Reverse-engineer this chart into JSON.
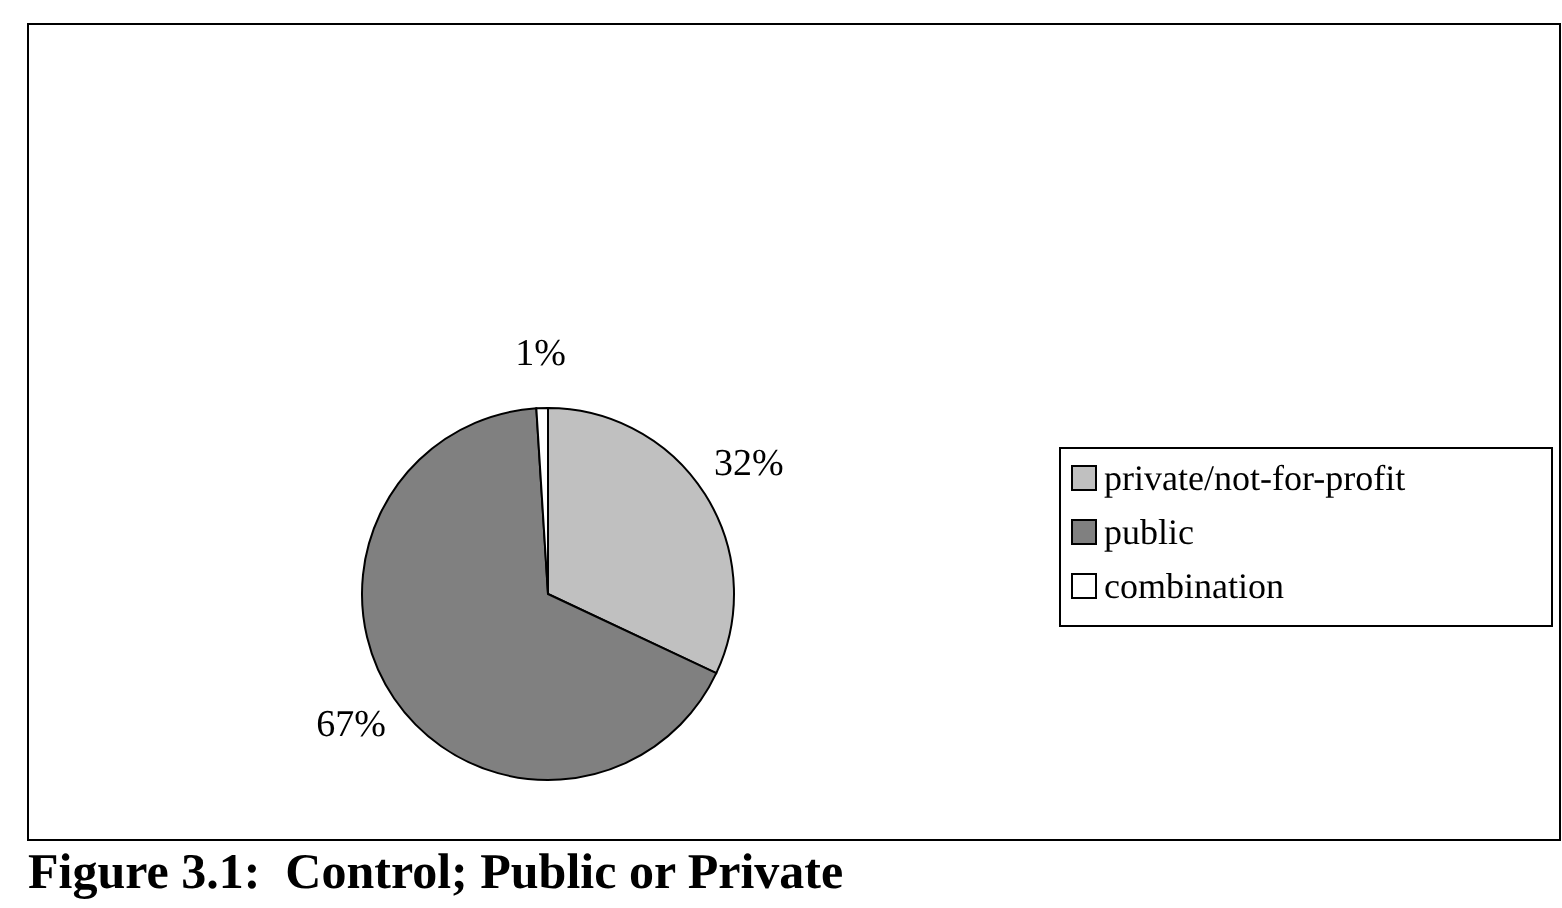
{
  "chart_data": {
    "type": "pie",
    "title": "Figure 3.1:  Control; Public or Private",
    "categories": [
      "private/not-for-profit",
      "public",
      "combination"
    ],
    "values": [
      32,
      67,
      1
    ],
    "colors": [
      "#c0c0c0",
      "#808080",
      "#ffffff"
    ],
    "value_labels": [
      "32%",
      "67%",
      "1%"
    ],
    "legend": "right"
  }
}
